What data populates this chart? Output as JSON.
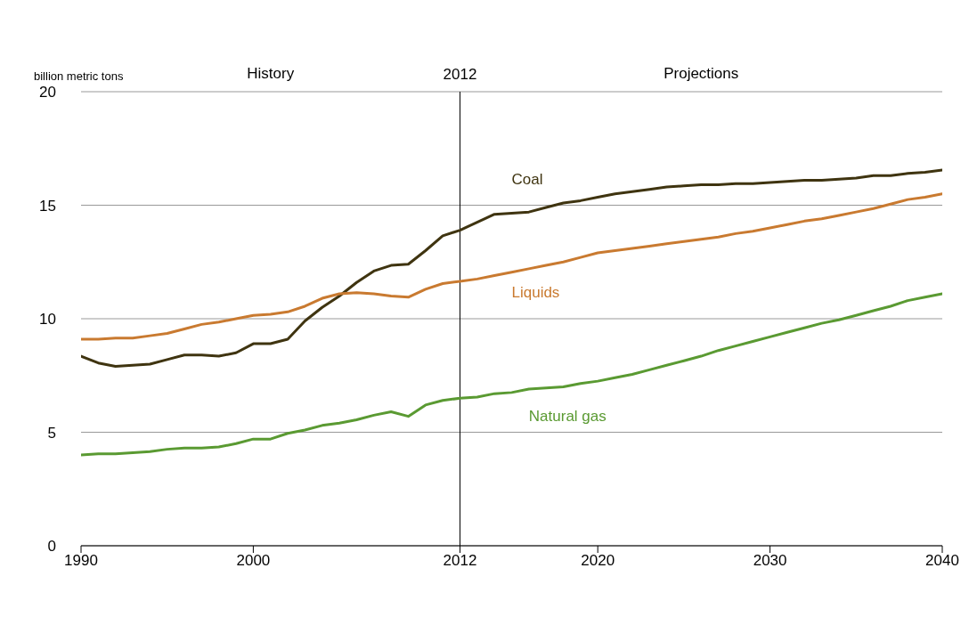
{
  "chart_data": {
    "type": "line",
    "ylabel": "billion metric tons",
    "x": [
      1990,
      1991,
      1992,
      1993,
      1994,
      1995,
      1996,
      1997,
      1998,
      1999,
      2000,
      2001,
      2002,
      2003,
      2004,
      2005,
      2006,
      2007,
      2008,
      2009,
      2010,
      2011,
      2012,
      2013,
      2014,
      2015,
      2016,
      2017,
      2018,
      2019,
      2020,
      2021,
      2022,
      2023,
      2024,
      2025,
      2026,
      2027,
      2028,
      2029,
      2030,
      2031,
      2032,
      2033,
      2034,
      2035,
      2036,
      2037,
      2038,
      2039,
      2040
    ],
    "series": [
      {
        "name": "Coal",
        "color": "#3f3410",
        "values": [
          8.35,
          8.05,
          7.9,
          7.95,
          8.0,
          8.2,
          8.4,
          8.4,
          8.35,
          8.5,
          8.9,
          8.9,
          9.1,
          9.9,
          10.5,
          11.0,
          11.6,
          12.1,
          12.35,
          12.4,
          13.0,
          13.65,
          13.9,
          14.25,
          14.6,
          14.65,
          14.7,
          14.9,
          15.1,
          15.2,
          15.35,
          15.5,
          15.6,
          15.7,
          15.8,
          15.85,
          15.9,
          15.9,
          15.95,
          15.95,
          16.0,
          16.05,
          16.1,
          16.1,
          16.15,
          16.2,
          16.3,
          16.3,
          16.4,
          16.45,
          16.55
        ]
      },
      {
        "name": "Liquids",
        "color": "#c97a30",
        "values": [
          9.1,
          9.1,
          9.15,
          9.15,
          9.25,
          9.35,
          9.55,
          9.75,
          9.85,
          10.0,
          10.15,
          10.2,
          10.3,
          10.55,
          10.9,
          11.1,
          11.15,
          11.1,
          11.0,
          10.95,
          11.3,
          11.55,
          11.65,
          11.75,
          11.9,
          12.05,
          12.2,
          12.35,
          12.5,
          12.7,
          12.9,
          13.0,
          13.1,
          13.2,
          13.3,
          13.4,
          13.5,
          13.6,
          13.75,
          13.85,
          14.0,
          14.15,
          14.3,
          14.4,
          14.55,
          14.7,
          14.85,
          15.05,
          15.25,
          15.35,
          15.5
        ]
      },
      {
        "name": "Natural gas",
        "color": "#5a9a32",
        "values": [
          4.0,
          4.05,
          4.05,
          4.1,
          4.15,
          4.25,
          4.3,
          4.3,
          4.35,
          4.5,
          4.7,
          4.7,
          4.95,
          5.1,
          5.3,
          5.4,
          5.55,
          5.75,
          5.9,
          5.7,
          6.2,
          6.4,
          6.5,
          6.55,
          6.7,
          6.75,
          6.9,
          6.95,
          7.0,
          7.15,
          7.25,
          7.4,
          7.55,
          7.75,
          7.95,
          8.15,
          8.35,
          8.6,
          8.8,
          9.0,
          9.2,
          9.4,
          9.6,
          9.8,
          9.95,
          10.15,
          10.35,
          10.55,
          10.8,
          10.95,
          11.1
        ]
      }
    ],
    "xlim": [
      1990,
      2040
    ],
    "xticks": [
      1990,
      2000,
      2012,
      2020,
      2030,
      2040
    ],
    "ylim": [
      0,
      20
    ],
    "yticks": [
      0,
      5,
      10,
      15,
      20
    ],
    "grid": "y",
    "marker": "none",
    "line_style": "solid",
    "ref_lines": [
      {
        "axis": "x",
        "value": 2012,
        "label": "2012",
        "color": "#000000"
      }
    ],
    "annotations": [
      "History",
      "Projections"
    ]
  }
}
